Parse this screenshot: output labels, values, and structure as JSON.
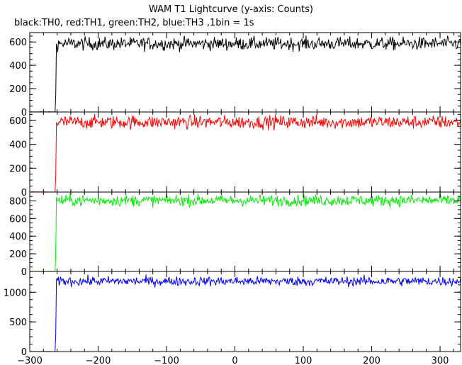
{
  "chart_data": {
    "type": "line",
    "title": "WAM T1 Lightcurve (y-axis: Counts)",
    "subtitle": "black:TH0, red:TH1, green:TH2, blue:TH3 ,1bin = 1s",
    "xlim": [
      -300,
      330
    ],
    "x_ticks": [
      -300,
      -200,
      -100,
      0,
      100,
      200,
      300
    ],
    "x_tick_labels": [
      "−300",
      "−200",
      "−100",
      "0",
      "100",
      "200",
      "300"
    ],
    "grid": false,
    "onset_x": -262,
    "panels": [
      {
        "channel": "TH0",
        "color": "#000000",
        "ylim": [
          0,
          680
        ],
        "y_ticks": [
          0,
          200,
          400,
          600
        ],
        "pre_level": 0,
        "post_level": 585,
        "noise": 28
      },
      {
        "channel": "TH1",
        "color": "#ff0000",
        "ylim": [
          0,
          670
        ],
        "y_ticks": [
          0,
          200,
          400,
          600
        ],
        "pre_level": 0,
        "post_level": 585,
        "noise": 28
      },
      {
        "channel": "TH2",
        "color": "#00ee00",
        "ylim": [
          0,
          900
        ],
        "y_ticks": [
          0,
          200,
          400,
          600,
          800
        ],
        "pre_level": 0,
        "post_level": 805,
        "noise": 32
      },
      {
        "channel": "TH3",
        "color": "#0000ff",
        "ylim": [
          0,
          1350
        ],
        "y_ticks": [
          0,
          500,
          1000
        ],
        "pre_level": 0,
        "post_level": 1185,
        "noise": 40
      }
    ]
  }
}
